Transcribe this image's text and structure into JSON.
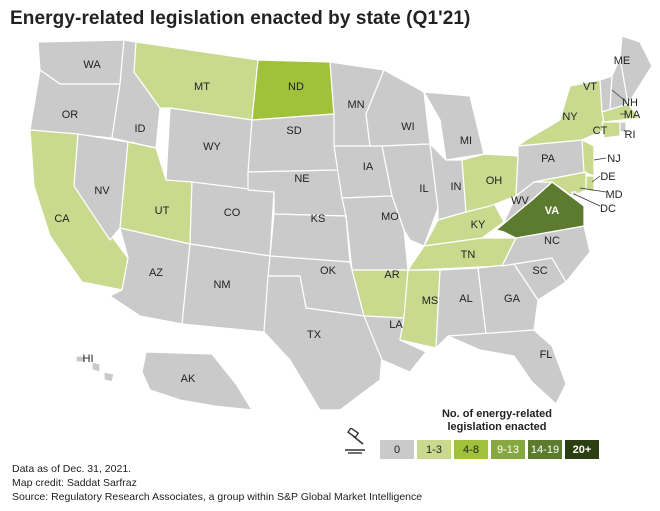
{
  "title": "Energy-related legislation enacted by state (Q1'21)",
  "colors": {
    "0": "#cacaca",
    "1-3": "#c9d98e",
    "4-8": "#a0c23b",
    "9-13": "#87a83f",
    "14-19": "#5c7b2e",
    "20+": "#2b3f12"
  },
  "legend": {
    "title_line1": "No. of energy-related",
    "title_line2": "legislation enacted",
    "items": [
      {
        "label": "0",
        "bin": "0"
      },
      {
        "label": "1-3",
        "bin": "1-3"
      },
      {
        "label": "4-8",
        "bin": "4-8"
      },
      {
        "label": "9-13",
        "bin": "9-13"
      },
      {
        "label": "14-19",
        "bin": "14-19"
      },
      {
        "label": "20+",
        "bin": "20+"
      }
    ]
  },
  "states": {
    "WA": "0",
    "OR": "0",
    "CA": "1-3",
    "NV": "0",
    "ID": "0",
    "MT": "1-3",
    "WY": "0",
    "UT": "1-3",
    "AZ": "0",
    "CO": "0",
    "NM": "0",
    "ND": "4-8",
    "SD": "0",
    "NE": "0",
    "KS": "0",
    "OK": "0",
    "TX": "0",
    "MN": "0",
    "IA": "0",
    "MO": "0",
    "AR": "1-3",
    "LA": "0",
    "WI": "0",
    "IL": "0",
    "MS": "1-3",
    "MI": "0",
    "IN": "0",
    "KY": "1-3",
    "TN": "1-3",
    "AL": "0",
    "OH": "1-3",
    "GA": "0",
    "FL": "0",
    "SC": "0",
    "NC": "0",
    "VA": "14-19",
    "WV": "0",
    "PA": "0",
    "NY": "1-3",
    "VT": "0",
    "ME": "0",
    "NH": "0",
    "MA": "1-3",
    "RI": "0",
    "CT": "1-3",
    "NJ": "1-3",
    "DE": "1-3",
    "MD": "1-3",
    "DC": "0",
    "AK": "0",
    "HI": "0"
  },
  "footer": {
    "line1": "Data as of Dec. 31, 2021.",
    "line2": "Map credit: Saddat Sarfraz",
    "line3": "Source: Regulatory Research Associates, a group within S&P Global Market Intelligence"
  }
}
